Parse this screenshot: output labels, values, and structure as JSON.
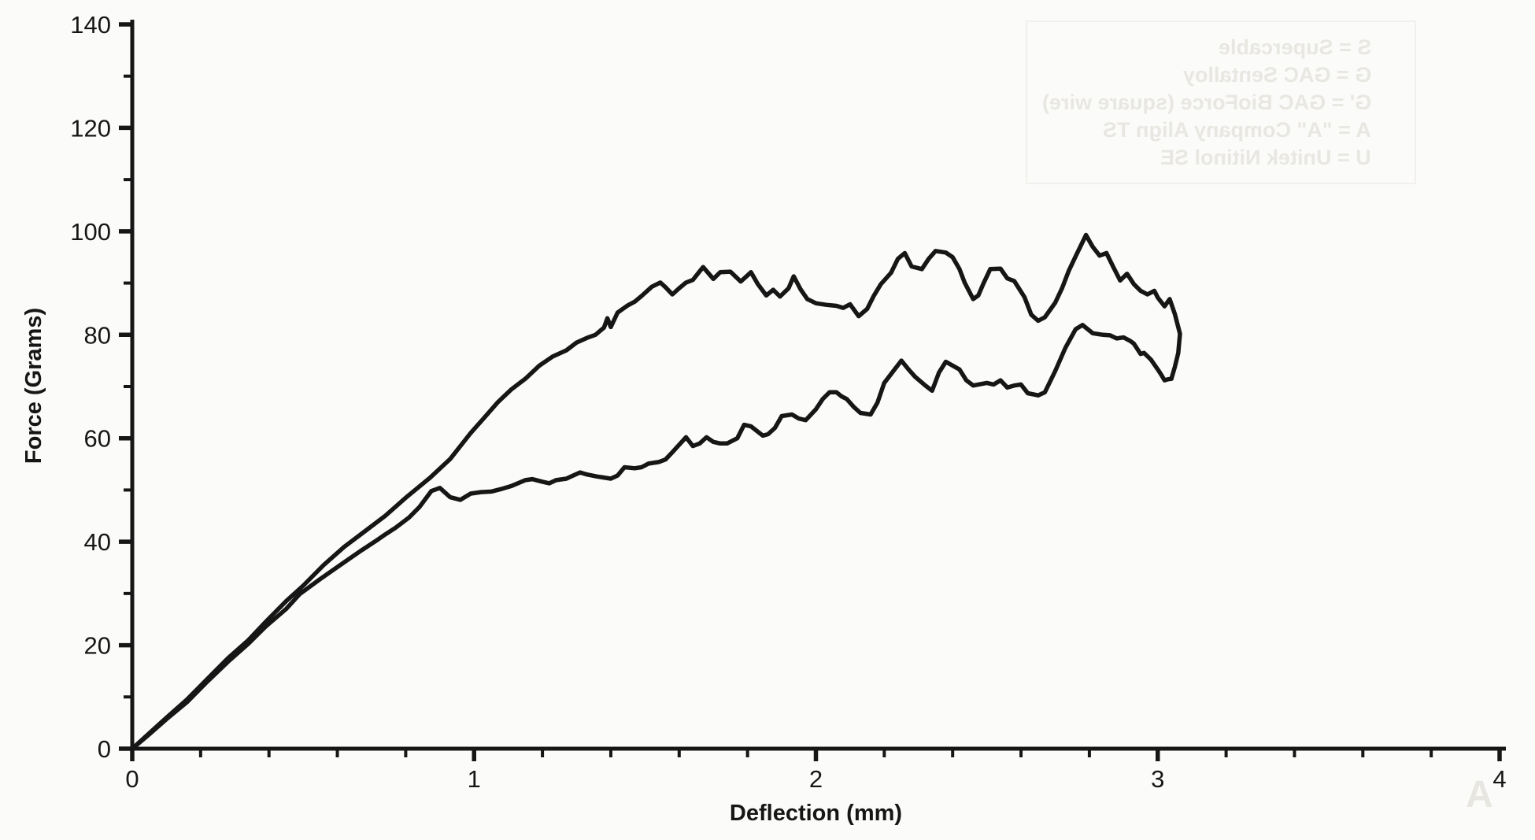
{
  "page": {
    "background": "#fbfbf9",
    "ink": "#161616"
  },
  "chart_data": {
    "type": "line",
    "title": "",
    "xlabel": "Deflection (mm)",
    "ylabel": "Force (Grams)",
    "xlim": [
      0,
      4
    ],
    "ylim": [
      0,
      140
    ],
    "x_major_ticks": [
      0,
      1,
      2,
      3,
      4
    ],
    "x_minor_step": 0.2,
    "y_major_ticks": [
      0,
      20,
      40,
      60,
      80,
      100,
      120,
      140
    ],
    "y_minor_step": 10,
    "grid": false,
    "legend_position": "none",
    "series": [
      {
        "name": "upper curve (loading)",
        "points": [
          [
            0,
            0
          ],
          [
            0.05,
            3
          ],
          [
            0.1,
            6
          ],
          [
            0.16,
            9.5
          ],
          [
            0.22,
            13.5
          ],
          [
            0.28,
            17.5
          ],
          [
            0.34,
            21
          ],
          [
            0.39,
            24.5
          ],
          [
            0.45,
            28.5
          ],
          [
            0.5,
            31.5
          ],
          [
            0.56,
            35.5
          ],
          [
            0.62,
            39
          ],
          [
            0.68,
            42
          ],
          [
            0.74,
            45
          ],
          [
            0.8,
            48.5
          ],
          [
            0.87,
            52.3
          ],
          [
            0.93,
            56
          ],
          [
            0.99,
            61
          ],
          [
            1.03,
            64
          ],
          [
            1.07,
            67
          ],
          [
            1.11,
            69.5
          ],
          [
            1.15,
            71.5
          ],
          [
            1.19,
            74
          ],
          [
            1.23,
            75.8
          ],
          [
            1.27,
            77
          ],
          [
            1.3,
            78.5
          ],
          [
            1.33,
            79.4
          ],
          [
            1.355,
            80
          ],
          [
            1.38,
            81.4
          ],
          [
            1.39,
            83.2
          ],
          [
            1.4,
            81.5
          ],
          [
            1.42,
            84.3
          ],
          [
            1.45,
            85.7
          ],
          [
            1.47,
            86.4
          ],
          [
            1.49,
            87.5
          ],
          [
            1.52,
            89.3
          ],
          [
            1.545,
            90.1
          ],
          [
            1.56,
            89.2
          ],
          [
            1.58,
            87.8
          ],
          [
            1.6,
            89
          ],
          [
            1.62,
            90.1
          ],
          [
            1.64,
            90.6
          ],
          [
            1.67,
            93.1
          ],
          [
            1.7,
            90.8
          ],
          [
            1.72,
            92.1
          ],
          [
            1.75,
            92.2
          ],
          [
            1.78,
            90.3
          ],
          [
            1.81,
            92.1
          ],
          [
            1.83,
            89.8
          ],
          [
            1.855,
            87.6
          ],
          [
            1.875,
            88.7
          ],
          [
            1.895,
            87.4
          ],
          [
            1.92,
            89
          ],
          [
            1.935,
            91.3
          ],
          [
            1.955,
            88.8
          ],
          [
            1.975,
            86.9
          ],
          [
            2.0,
            86.1
          ],
          [
            2.03,
            85.8
          ],
          [
            2.06,
            85.6
          ],
          [
            2.08,
            85.2
          ],
          [
            2.1,
            85.9
          ],
          [
            2.125,
            83.6
          ],
          [
            2.15,
            85
          ],
          [
            2.17,
            87.6
          ],
          [
            2.19,
            89.8
          ],
          [
            2.22,
            92
          ],
          [
            2.24,
            94.7
          ],
          [
            2.26,
            95.8
          ],
          [
            2.28,
            93.2
          ],
          [
            2.31,
            92.7
          ],
          [
            2.33,
            94.7
          ],
          [
            2.35,
            96.2
          ],
          [
            2.38,
            95.9
          ],
          [
            2.4,
            95
          ],
          [
            2.42,
            92.7
          ],
          [
            2.435,
            90.1
          ],
          [
            2.46,
            86.9
          ],
          [
            2.475,
            87.6
          ],
          [
            2.49,
            89.9
          ],
          [
            2.51,
            92.7
          ],
          [
            2.54,
            92.8
          ],
          [
            2.56,
            90.9
          ],
          [
            2.58,
            90.4
          ],
          [
            2.61,
            87.3
          ],
          [
            2.63,
            83.9
          ],
          [
            2.65,
            82.7
          ],
          [
            2.67,
            83.4
          ],
          [
            2.7,
            86.2
          ],
          [
            2.72,
            89
          ],
          [
            2.74,
            92.4
          ],
          [
            2.76,
            95.2
          ],
          [
            2.79,
            99.3
          ],
          [
            2.81,
            97
          ],
          [
            2.83,
            95.3
          ],
          [
            2.85,
            95.8
          ],
          [
            2.87,
            93.1
          ],
          [
            2.89,
            90.5
          ],
          [
            2.91,
            91.8
          ],
          [
            2.93,
            89.8
          ],
          [
            2.95,
            88.5
          ],
          [
            2.97,
            87.8
          ],
          [
            2.99,
            88.5
          ],
          [
            3.0,
            87.2
          ],
          [
            3.02,
            85.5
          ],
          [
            3.035,
            86.9
          ],
          [
            3.05,
            84
          ],
          [
            3.065,
            80.2
          ],
          [
            3.06,
            76.5
          ],
          [
            3.05,
            73.8
          ],
          [
            3.04,
            71.5
          ]
        ]
      },
      {
        "name": "lower curve (unloading)",
        "points": [
          [
            0,
            0
          ],
          [
            0.05,
            2.8
          ],
          [
            0.1,
            5.7
          ],
          [
            0.16,
            9
          ],
          [
            0.22,
            13
          ],
          [
            0.28,
            16.8
          ],
          [
            0.34,
            20.3
          ],
          [
            0.39,
            23.6
          ],
          [
            0.45,
            27
          ],
          [
            0.49,
            29.9
          ],
          [
            0.55,
            32.8
          ],
          [
            0.6,
            35.1
          ],
          [
            0.67,
            38.3
          ],
          [
            0.72,
            40.5
          ],
          [
            0.74,
            41.4
          ],
          [
            0.77,
            42.7
          ],
          [
            0.81,
            44.7
          ],
          [
            0.84,
            46.7
          ],
          [
            0.875,
            49.8
          ],
          [
            0.9,
            50.4
          ],
          [
            0.93,
            48.6
          ],
          [
            0.96,
            48.1
          ],
          [
            0.99,
            49.3
          ],
          [
            1.02,
            49.6
          ],
          [
            1.05,
            49.7
          ],
          [
            1.08,
            50.2
          ],
          [
            1.11,
            50.8
          ],
          [
            1.15,
            51.9
          ],
          [
            1.17,
            52.1
          ],
          [
            1.2,
            51.6
          ],
          [
            1.22,
            51.3
          ],
          [
            1.24,
            51.9
          ],
          [
            1.27,
            52.2
          ],
          [
            1.29,
            52.8
          ],
          [
            1.31,
            53.4
          ],
          [
            1.33,
            53
          ],
          [
            1.36,
            52.6
          ],
          [
            1.4,
            52.2
          ],
          [
            1.42,
            52.8
          ],
          [
            1.44,
            54.4
          ],
          [
            1.47,
            54.2
          ],
          [
            1.49,
            54.4
          ],
          [
            1.51,
            55.1
          ],
          [
            1.54,
            55.4
          ],
          [
            1.56,
            55.9
          ],
          [
            1.58,
            57.3
          ],
          [
            1.62,
            60.2
          ],
          [
            1.64,
            58.5
          ],
          [
            1.66,
            59
          ],
          [
            1.68,
            60.2
          ],
          [
            1.7,
            59.3
          ],
          [
            1.72,
            59
          ],
          [
            1.74,
            59
          ],
          [
            1.77,
            60
          ],
          [
            1.79,
            62.6
          ],
          [
            1.81,
            62.3
          ],
          [
            1.845,
            60.5
          ],
          [
            1.86,
            60.8
          ],
          [
            1.88,
            62
          ],
          [
            1.9,
            64.3
          ],
          [
            1.93,
            64.6
          ],
          [
            1.95,
            63.8
          ],
          [
            1.97,
            63.5
          ],
          [
            2.0,
            65.6
          ],
          [
            2.02,
            67.6
          ],
          [
            2.04,
            68.9
          ],
          [
            2.06,
            68.9
          ],
          [
            2.075,
            68.1
          ],
          [
            2.09,
            67.6
          ],
          [
            2.11,
            66.1
          ],
          [
            2.13,
            64.9
          ],
          [
            2.16,
            64.6
          ],
          [
            2.18,
            66.9
          ],
          [
            2.2,
            70.7
          ],
          [
            2.23,
            73.3
          ],
          [
            2.25,
            75
          ],
          [
            2.27,
            73.4
          ],
          [
            2.29,
            71.9
          ],
          [
            2.32,
            70.2
          ],
          [
            2.34,
            69.2
          ],
          [
            2.36,
            72.7
          ],
          [
            2.38,
            74.8
          ],
          [
            2.42,
            73.3
          ],
          [
            2.44,
            71.2
          ],
          [
            2.46,
            70.2
          ],
          [
            2.5,
            70.7
          ],
          [
            2.52,
            70.4
          ],
          [
            2.54,
            71.2
          ],
          [
            2.56,
            69.8
          ],
          [
            2.58,
            70.2
          ],
          [
            2.6,
            70.4
          ],
          [
            2.62,
            68.7
          ],
          [
            2.65,
            68.3
          ],
          [
            2.67,
            68.9
          ],
          [
            2.7,
            73
          ],
          [
            2.73,
            77.5
          ],
          [
            2.76,
            81.1
          ],
          [
            2.78,
            81.9
          ],
          [
            2.81,
            80.3
          ],
          [
            2.84,
            80
          ],
          [
            2.86,
            79.9
          ],
          [
            2.88,
            79.3
          ],
          [
            2.9,
            79.5
          ],
          [
            2.92,
            78.8
          ],
          [
            2.93,
            78.3
          ],
          [
            2.95,
            76.3
          ],
          [
            2.96,
            76.5
          ],
          [
            2.98,
            75.2
          ],
          [
            3.0,
            73.3
          ],
          [
            3.01,
            72.3
          ],
          [
            3.02,
            71.2
          ],
          [
            3.03,
            71.4
          ],
          [
            3.04,
            71.5
          ]
        ]
      }
    ]
  },
  "ghost": {
    "legend_lines": [
      "S = Supercable",
      "G = GAC Sentalloy",
      "G' = GAC BioForce (square wire)",
      "A = \"A\" Company Align TS",
      "U = Unitek Nitinol SE"
    ],
    "watermark": "A"
  }
}
